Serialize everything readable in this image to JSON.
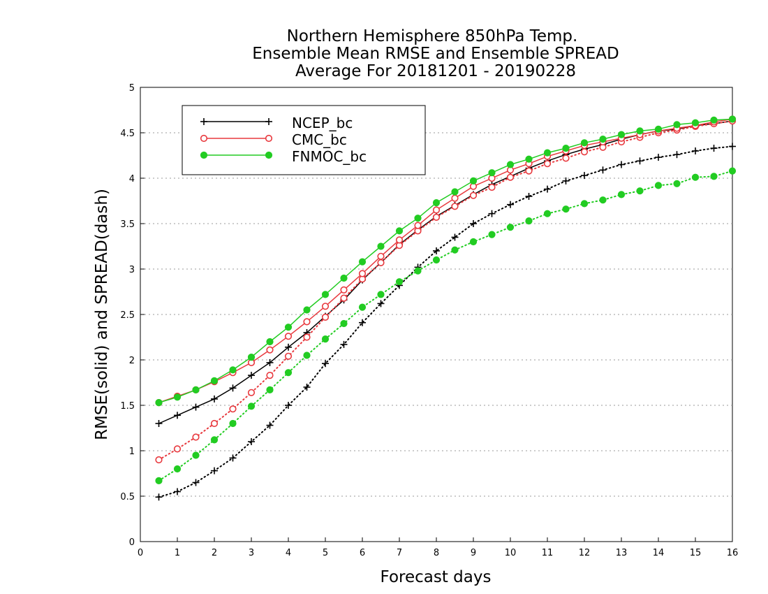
{
  "chart_data": {
    "type": "line",
    "title": [
      "Northern Hemisphere 850hPa Temp.",
      "Ensemble Mean RMSE and Ensemble SPREAD",
      "Average For 20181201 - 20190228"
    ],
    "xlabel": "Forecast days",
    "ylabel": "RMSE(solid) and SPREAD(dash)",
    "xlim": [
      0,
      16
    ],
    "ylim": [
      0,
      5
    ],
    "xticks": [
      0,
      1,
      2,
      3,
      4,
      5,
      6,
      7,
      8,
      9,
      10,
      11,
      12,
      13,
      14,
      15,
      16
    ],
    "yticks": [
      0,
      0.5,
      1,
      1.5,
      2,
      2.5,
      3,
      3.5,
      4,
      4.5,
      5
    ],
    "grid": "horizontal-dotted",
    "legend_position": "top-left",
    "x": [
      0.5,
      1,
      1.5,
      2,
      2.5,
      3,
      3.5,
      4,
      4.5,
      5,
      5.5,
      6,
      6.5,
      7,
      7.5,
      8,
      8.5,
      9,
      9.5,
      10,
      10.5,
      11,
      11.5,
      12,
      12.5,
      13,
      13.5,
      14,
      14.5,
      15,
      15.5,
      16
    ],
    "series": [
      {
        "name": "NCEP_bc",
        "color": "#000000",
        "marker": "plus",
        "rmse": [
          1.3,
          1.39,
          1.48,
          1.57,
          1.69,
          1.83,
          1.97,
          2.14,
          2.3,
          2.48,
          2.66,
          2.88,
          3.07,
          3.27,
          3.43,
          3.58,
          3.7,
          3.82,
          3.93,
          4.02,
          4.11,
          4.19,
          4.26,
          4.32,
          4.37,
          4.43,
          4.48,
          4.52,
          4.54,
          4.58,
          4.6,
          4.63
        ],
        "spread": [
          0.49,
          0.55,
          0.65,
          0.78,
          0.92,
          1.1,
          1.28,
          1.5,
          1.7,
          1.96,
          2.17,
          2.41,
          2.62,
          2.82,
          3.02,
          3.2,
          3.35,
          3.5,
          3.61,
          3.71,
          3.8,
          3.88,
          3.97,
          4.03,
          4.09,
          4.15,
          4.19,
          4.23,
          4.26,
          4.3,
          4.33,
          4.35
        ]
      },
      {
        "name": "CMC_bc",
        "color": "#e8393e",
        "marker": "open-circle",
        "rmse": [
          1.53,
          1.6,
          1.67,
          1.76,
          1.86,
          1.97,
          2.11,
          2.26,
          2.42,
          2.59,
          2.77,
          2.95,
          3.14,
          3.32,
          3.48,
          3.65,
          3.78,
          3.91,
          4.0,
          4.09,
          4.16,
          4.24,
          4.3,
          4.36,
          4.4,
          4.44,
          4.48,
          4.52,
          4.55,
          4.58,
          4.62,
          4.65
        ],
        "spread": [
          0.9,
          1.02,
          1.15,
          1.3,
          1.46,
          1.64,
          1.83,
          2.04,
          2.25,
          2.47,
          2.68,
          2.89,
          3.07,
          3.26,
          3.42,
          3.57,
          3.69,
          3.81,
          3.9,
          4.01,
          4.08,
          4.16,
          4.22,
          4.29,
          4.34,
          4.4,
          4.45,
          4.5,
          4.53,
          4.57,
          4.6,
          4.63
        ]
      },
      {
        "name": "FNMOC_bc",
        "color": "#22cc22",
        "marker": "filled-circle",
        "rmse": [
          1.53,
          1.59,
          1.67,
          1.77,
          1.89,
          2.03,
          2.2,
          2.36,
          2.55,
          2.72,
          2.9,
          3.08,
          3.25,
          3.42,
          3.56,
          3.73,
          3.85,
          3.97,
          4.06,
          4.15,
          4.21,
          4.28,
          4.33,
          4.39,
          4.43,
          4.48,
          4.52,
          4.54,
          4.59,
          4.61,
          4.64,
          4.65
        ],
        "spread": [
          0.67,
          0.8,
          0.95,
          1.12,
          1.3,
          1.49,
          1.67,
          1.86,
          2.05,
          2.23,
          2.4,
          2.58,
          2.72,
          2.86,
          2.98,
          3.1,
          3.21,
          3.3,
          3.38,
          3.46,
          3.53,
          3.61,
          3.66,
          3.72,
          3.76,
          3.82,
          3.86,
          3.92,
          3.94,
          4.01,
          4.02,
          4.08
        ]
      }
    ]
  }
}
